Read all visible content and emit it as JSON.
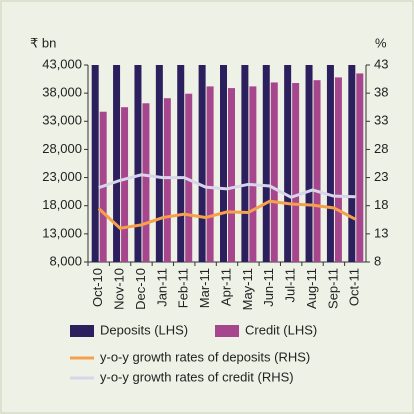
{
  "chart_data": {
    "type": "bar_line",
    "y_label": "₹ bn",
    "y2_label": "%",
    "categories": [
      "Oct-10",
      "Nov-10",
      "Dec-10",
      "Jan-11",
      "Feb-11",
      "Mar-11",
      "Apr-11",
      "May-11",
      "Jun-11",
      "Jul-11",
      "Aug-11",
      "Sep-11",
      "Oct-11"
    ],
    "series": [
      {
        "name": "Deposits (LHS)",
        "kind": "bar",
        "color": "#2b1f5e",
        "values": [
          43000,
          43000,
          43000,
          43000,
          43000,
          43000,
          43000,
          43000,
          43000,
          43000,
          43000,
          43000,
          43000
        ]
      },
      {
        "name": "Credit (LHS)",
        "kind": "bar",
        "color": "#a6478e",
        "values": [
          34700,
          35500,
          36200,
          37100,
          37900,
          39200,
          38900,
          39200,
          39900,
          39800,
          40300,
          40800,
          41500
        ]
      },
      {
        "name": "y-o-y growth rates of deposits (RHS)",
        "kind": "line",
        "axis": "y2",
        "color": "#f5a04a",
        "values": [
          17.5,
          14.0,
          14.6,
          15.9,
          16.5,
          15.9,
          16.9,
          16.8,
          18.8,
          18.3,
          18.1,
          17.6,
          15.6
        ]
      },
      {
        "name": "y-o-y growth rates of credit (RHS)",
        "kind": "line",
        "axis": "y2",
        "color": "#d8d5ea",
        "values": [
          21.2,
          22.5,
          23.5,
          23.0,
          23.0,
          21.3,
          21.0,
          21.8,
          21.5,
          19.5,
          20.8,
          19.7,
          19.6
        ]
      }
    ],
    "ylim": [
      8000,
      43000
    ],
    "yticks": [
      {
        "value": 8000,
        "label": "8,000"
      },
      {
        "value": 13000,
        "label": "13,000"
      },
      {
        "value": 18000,
        "label": "18,000"
      },
      {
        "value": 23000,
        "label": "23,000"
      },
      {
        "value": 28000,
        "label": "28,000"
      },
      {
        "value": 33000,
        "label": "33,000"
      },
      {
        "value": 38000,
        "label": "38,000"
      },
      {
        "value": 43000,
        "label": "43,000"
      }
    ],
    "y2lim": [
      8,
      43
    ],
    "y2ticks": [
      8,
      13,
      18,
      23,
      28,
      33,
      38,
      43
    ]
  }
}
